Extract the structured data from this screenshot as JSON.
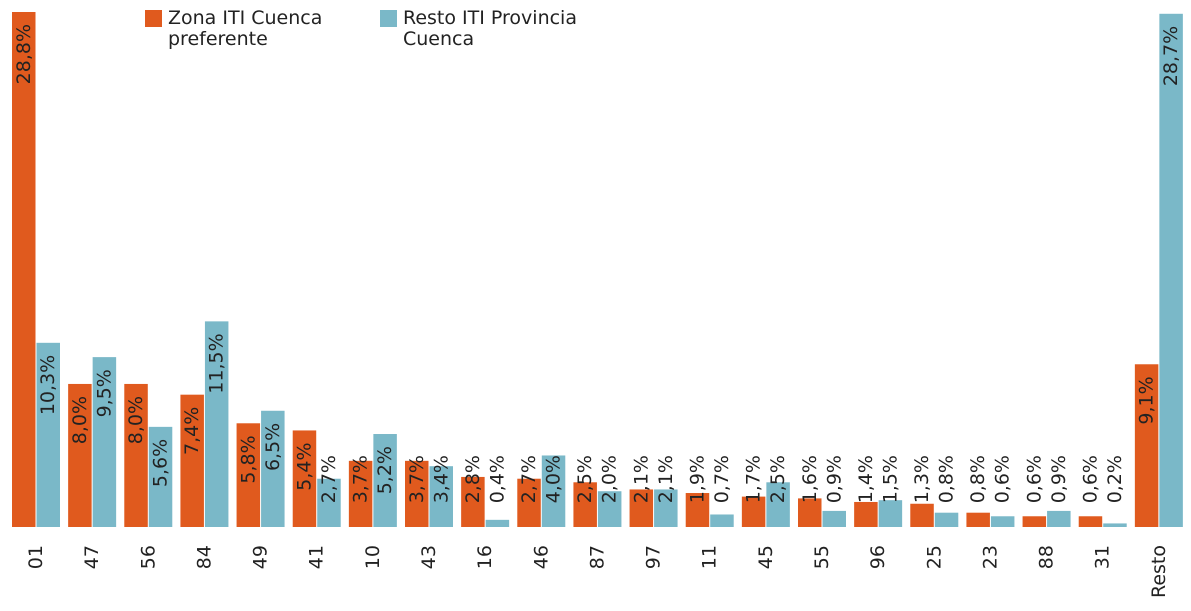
{
  "chart_data": {
    "type": "bar",
    "categories": [
      "01",
      "47",
      "56",
      "84",
      "49",
      "41",
      "10",
      "43",
      "16",
      "46",
      "87",
      "97",
      "11",
      "45",
      "55",
      "96",
      "25",
      "23",
      "88",
      "31",
      "Resto"
    ],
    "series": [
      {
        "name": "Zona ITI Cuenca preferente",
        "color": "#e05a1e",
        "values": [
          28.8,
          8.0,
          8.0,
          7.4,
          5.8,
          5.4,
          3.7,
          3.7,
          2.8,
          2.7,
          2.5,
          2.1,
          1.9,
          1.7,
          1.6,
          1.4,
          1.3,
          0.8,
          0.6,
          0.6,
          9.1
        ],
        "value_labels": [
          "28,8%",
          "8,0%",
          "8,0%",
          "7,4%",
          "5,8%",
          "5,4%",
          "3,7%",
          "3,7%",
          "2,8%",
          "2,7%",
          "2,5%",
          "2,1%",
          "1,9%",
          "1,7%",
          "1,6%",
          "1,4%",
          "1,3%",
          "0,8%",
          "0,6%",
          "0,6%",
          "9,1%"
        ]
      },
      {
        "name": "Resto ITI Provincia Cuenca",
        "color": "#7ab8c8",
        "values": [
          10.3,
          9.5,
          5.6,
          11.5,
          6.5,
          2.7,
          5.2,
          3.4,
          0.4,
          4.0,
          2.0,
          2.1,
          0.7,
          2.5,
          0.9,
          1.5,
          0.8,
          0.6,
          0.9,
          0.2,
          28.7
        ],
        "value_labels": [
          "10,3%",
          "9,5%",
          "5,6%",
          "11,5%",
          "6,5%",
          "2,7%",
          "5,2%",
          "3,4%",
          "0,4%",
          "4,0%",
          "2,0%",
          "2,1%",
          "0,7%",
          "2,5%",
          "0,9%",
          "1,5%",
          "0,8%",
          "0,6%",
          "0,9%",
          "0,2%",
          "28,7%"
        ]
      }
    ],
    "ylim": [
      0,
      28.8
    ]
  }
}
